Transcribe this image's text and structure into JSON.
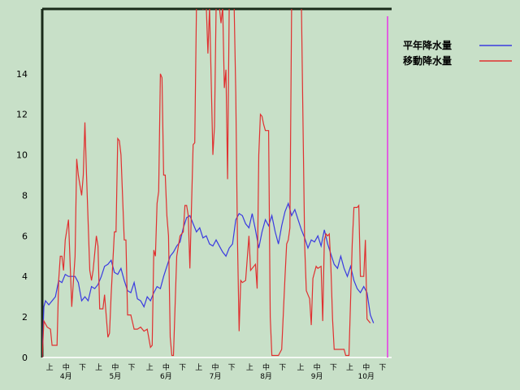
{
  "chart_data": {
    "type": "line",
    "title": "",
    "xlabel": "",
    "ylabel": "",
    "ylim": [
      0,
      17.2
    ],
    "yticks": [
      0,
      2,
      4,
      6,
      8,
      10,
      12,
      14
    ],
    "x_period_labels": [
      "上",
      "中",
      "下",
      "上",
      "中",
      "下",
      "上",
      "中",
      "下",
      "上",
      "中",
      "下",
      "上",
      "中",
      "下",
      "上",
      "中",
      "下",
      "上",
      "中",
      "下"
    ],
    "x_month_labels": [
      "4月",
      "5月",
      "6月",
      "7月",
      "8月",
      "9月",
      "10月"
    ],
    "n_days": 214,
    "legend": {
      "placement": "top-right"
    },
    "grid": false,
    "series": [
      {
        "name": "平年降水量",
        "color": "#3a3ae0",
        "points": [
          [
            0,
            0
          ],
          [
            1,
            2.5
          ],
          [
            2,
            2.8
          ],
          [
            4,
            2.6
          ],
          [
            6,
            2.8
          ],
          [
            8,
            3.0
          ],
          [
            10,
            3.8
          ],
          [
            12,
            3.7
          ],
          [
            14,
            4.1
          ],
          [
            16,
            4.0
          ],
          [
            18,
            4.0
          ],
          [
            20,
            4.0
          ],
          [
            22,
            3.7
          ],
          [
            24,
            2.8
          ],
          [
            26,
            3.0
          ],
          [
            28,
            2.8
          ],
          [
            30,
            3.5
          ],
          [
            32,
            3.4
          ],
          [
            34,
            3.6
          ],
          [
            36,
            4.0
          ],
          [
            38,
            4.5
          ],
          [
            40,
            4.6
          ],
          [
            42,
            4.8
          ],
          [
            44,
            4.2
          ],
          [
            46,
            4.1
          ],
          [
            48,
            4.4
          ],
          [
            50,
            3.8
          ],
          [
            52,
            3.3
          ],
          [
            54,
            3.2
          ],
          [
            56,
            3.7
          ],
          [
            58,
            2.9
          ],
          [
            60,
            2.8
          ],
          [
            62,
            2.5
          ],
          [
            64,
            3.0
          ],
          [
            66,
            2.8
          ],
          [
            68,
            3.2
          ],
          [
            70,
            3.5
          ],
          [
            72,
            3.4
          ],
          [
            74,
            4.0
          ],
          [
            76,
            4.5
          ],
          [
            78,
            5.0
          ],
          [
            80,
            5.2
          ],
          [
            82,
            5.5
          ],
          [
            84,
            5.7
          ],
          [
            86,
            6.4
          ],
          [
            88,
            6.9
          ],
          [
            90,
            7.0
          ],
          [
            92,
            6.6
          ],
          [
            94,
            6.2
          ],
          [
            96,
            6.4
          ],
          [
            98,
            5.9
          ],
          [
            100,
            6.0
          ],
          [
            102,
            5.6
          ],
          [
            104,
            5.5
          ],
          [
            106,
            5.8
          ],
          [
            108,
            5.5
          ],
          [
            110,
            5.2
          ],
          [
            112,
            5.0
          ],
          [
            114,
            5.4
          ],
          [
            116,
            5.6
          ],
          [
            118,
            6.8
          ],
          [
            120,
            7.1
          ],
          [
            122,
            7.0
          ],
          [
            124,
            6.6
          ],
          [
            126,
            6.4
          ],
          [
            128,
            7.1
          ],
          [
            130,
            6.3
          ],
          [
            132,
            5.4
          ],
          [
            134,
            6.2
          ],
          [
            136,
            6.8
          ],
          [
            138,
            6.5
          ],
          [
            140,
            7.0
          ],
          [
            142,
            6.2
          ],
          [
            144,
            5.6
          ],
          [
            146,
            6.5
          ],
          [
            148,
            7.2
          ],
          [
            150,
            7.6
          ],
          [
            152,
            7.0
          ],
          [
            154,
            7.3
          ],
          [
            156,
            6.8
          ],
          [
            158,
            6.3
          ],
          [
            160,
            5.9
          ],
          [
            162,
            5.4
          ],
          [
            164,
            5.8
          ],
          [
            166,
            5.7
          ],
          [
            168,
            6.0
          ],
          [
            170,
            5.5
          ],
          [
            172,
            6.3
          ],
          [
            174,
            5.6
          ],
          [
            176,
            5.1
          ],
          [
            178,
            4.6
          ],
          [
            180,
            4.4
          ],
          [
            182,
            5.0
          ],
          [
            184,
            4.4
          ],
          [
            186,
            4.0
          ],
          [
            188,
            4.5
          ],
          [
            190,
            3.8
          ],
          [
            192,
            3.4
          ],
          [
            194,
            3.2
          ],
          [
            196,
            3.5
          ],
          [
            198,
            3.2
          ],
          [
            200,
            2.1
          ],
          [
            202,
            1.7
          ]
        ]
      },
      {
        "name": "移動降水量",
        "color": "#e03030",
        "points": [
          [
            0,
            0
          ],
          [
            1,
            1.8
          ],
          [
            3,
            1.5
          ],
          [
            5,
            1.4
          ],
          [
            6,
            0.6
          ],
          [
            9,
            0.6
          ],
          [
            10,
            3.8
          ],
          [
            11,
            5.0
          ],
          [
            12,
            5.0
          ],
          [
            13,
            4.3
          ],
          [
            14,
            5.8
          ],
          [
            16,
            6.8
          ],
          [
            18,
            2.5
          ],
          [
            20,
            5.0
          ],
          [
            21,
            9.8
          ],
          [
            22,
            9.0
          ],
          [
            23,
            8.5
          ],
          [
            24,
            8.0
          ],
          [
            25,
            9.0
          ],
          [
            26,
            11.6
          ],
          [
            27,
            9.0
          ],
          [
            29,
            4.3
          ],
          [
            30,
            3.8
          ],
          [
            31,
            4.3
          ],
          [
            33,
            6.0
          ],
          [
            34,
            5.5
          ],
          [
            35,
            2.4
          ],
          [
            37,
            2.4
          ],
          [
            38,
            3.1
          ],
          [
            40,
            1.0
          ],
          [
            41,
            1.2
          ],
          [
            42,
            3.1
          ],
          [
            44,
            6.2
          ],
          [
            45,
            6.2
          ],
          [
            46,
            10.8
          ],
          [
            47,
            10.7
          ],
          [
            48,
            10.0
          ],
          [
            50,
            5.8
          ],
          [
            51,
            5.8
          ],
          [
            52,
            2.1
          ],
          [
            54,
            2.1
          ],
          [
            56,
            1.4
          ],
          [
            58,
            1.4
          ],
          [
            60,
            1.5
          ],
          [
            62,
            1.3
          ],
          [
            64,
            1.4
          ],
          [
            66,
            0.5
          ],
          [
            67,
            0.6
          ],
          [
            68,
            5.3
          ],
          [
            69,
            5.0
          ],
          [
            70,
            7.6
          ],
          [
            71,
            8.2
          ],
          [
            72,
            14.0
          ],
          [
            73,
            13.8
          ],
          [
            74,
            9.0
          ],
          [
            75,
            9.0
          ],
          [
            76,
            7.0
          ],
          [
            77,
            6.0
          ],
          [
            78,
            1.0
          ],
          [
            79,
            0.1
          ],
          [
            80,
            0.1
          ],
          [
            82,
            5.0
          ],
          [
            84,
            6.0
          ],
          [
            86,
            6.2
          ],
          [
            87,
            7.5
          ],
          [
            88,
            7.5
          ],
          [
            89,
            7.0
          ],
          [
            90,
            4.4
          ],
          [
            92,
            10.5
          ],
          [
            93,
            10.6
          ],
          [
            94,
            17.3
          ],
          [
            97,
            17.3
          ],
          [
            98,
            17.2
          ],
          [
            100,
            17.3
          ],
          [
            101,
            15.0
          ],
          [
            102,
            17.3
          ],
          [
            104,
            10.0
          ],
          [
            105,
            11.4
          ],
          [
            106,
            17.3
          ],
          [
            108,
            17.3
          ],
          [
            109,
            16.5
          ],
          [
            110,
            17.3
          ],
          [
            111,
            13.3
          ],
          [
            112,
            14.2
          ],
          [
            113,
            8.8
          ],
          [
            114,
            17.3
          ],
          [
            117,
            17.3
          ],
          [
            118,
            13.0
          ],
          [
            119,
            6.0
          ],
          [
            120,
            1.3
          ],
          [
            121,
            3.8
          ],
          [
            122,
            3.7
          ],
          [
            124,
            3.8
          ],
          [
            126,
            6.0
          ],
          [
            127,
            4.3
          ],
          [
            128,
            4.4
          ],
          [
            130,
            4.6
          ],
          [
            131,
            3.4
          ],
          [
            132,
            10.0
          ],
          [
            133,
            12.0
          ],
          [
            134,
            11.9
          ],
          [
            135,
            11.5
          ],
          [
            136,
            11.2
          ],
          [
            138,
            11.2
          ],
          [
            139,
            2.0
          ],
          [
            140,
            0.1
          ],
          [
            144,
            0.1
          ],
          [
            146,
            0.4
          ],
          [
            148,
            4.0
          ],
          [
            149,
            5.6
          ],
          [
            150,
            5.8
          ],
          [
            151,
            6.4
          ],
          [
            152,
            17.3
          ],
          [
            158,
            17.3
          ],
          [
            160,
            5.5
          ],
          [
            161,
            3.3
          ],
          [
            162,
            3.1
          ],
          [
            163,
            2.9
          ],
          [
            164,
            1.6
          ],
          [
            165,
            3.9
          ],
          [
            167,
            4.5
          ],
          [
            168,
            4.4
          ],
          [
            170,
            4.5
          ],
          [
            171,
            1.8
          ],
          [
            172,
            5.8
          ],
          [
            173,
            6.1
          ],
          [
            174,
            6.0
          ],
          [
            175,
            6.1
          ],
          [
            176,
            4.4
          ],
          [
            177,
            1.9
          ],
          [
            178,
            0.4
          ],
          [
            180,
            0.4
          ],
          [
            182,
            0.4
          ],
          [
            184,
            0.4
          ],
          [
            185,
            0.1
          ],
          [
            187,
            0.1
          ],
          [
            189,
            5.6
          ],
          [
            190,
            7.4
          ],
          [
            192,
            7.4
          ],
          [
            193,
            7.5
          ],
          [
            194,
            4.0
          ],
          [
            196,
            4.0
          ],
          [
            197,
            5.8
          ],
          [
            198,
            1.9
          ],
          [
            200,
            1.7
          ]
        ]
      }
    ]
  }
}
